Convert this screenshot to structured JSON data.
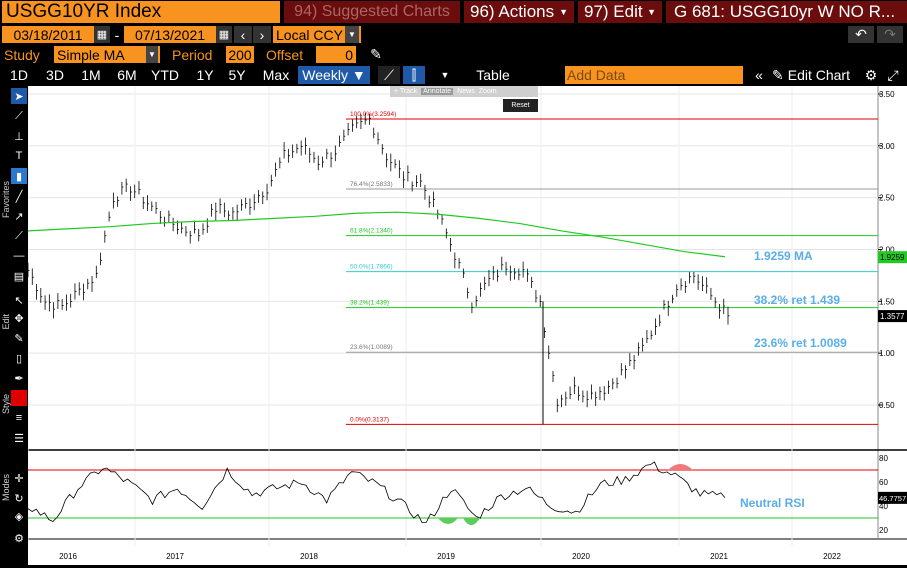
{
  "header": {
    "ticker": "USGG10YR Index",
    "suggested": "94) Suggested Charts",
    "actions": "96) Actions",
    "edit": "97) Edit",
    "gtitle": "G 681: USGG10yr W NO R..."
  },
  "dates": {
    "start": "03/18/2011",
    "sep": "-",
    "end": "07/13/2021",
    "ccy": "Local CCY"
  },
  "study": {
    "label": "Study",
    "name": "Simple MA",
    "period_label": "Period",
    "period": "200",
    "offset_label": "Offset",
    "offset": "0"
  },
  "ranges": [
    "1D",
    "3D",
    "1M",
    "6M",
    "YTD",
    "1Y",
    "5Y",
    "Max"
  ],
  "freq": "Weekly ▼",
  "toolbar": {
    "table": "Table",
    "add_data": "Add Data",
    "edit_chart": "Edit Chart"
  },
  "mini": [
    "+ Track",
    "Annotate",
    "News",
    "Zoom",
    "Reset"
  ],
  "side": {
    "favorites": "Favorites",
    "edit": "Edit",
    "style": "Style",
    "modes": "Modes"
  },
  "chart_data": {
    "type": "line",
    "x_labels": [
      "2016",
      "2017",
      "2018",
      "2019",
      "2020",
      "2021",
      "2022"
    ],
    "y_ticks": [
      "3.50",
      "3.00",
      "2.50",
      "2.00",
      "1.50",
      "1.00",
      "0.50"
    ],
    "rsi_ticks": [
      "80",
      "60",
      "40",
      "20"
    ],
    "fib": [
      {
        "label": "100.0%(3.2594)",
        "value": 3.2594,
        "color": "#e00000"
      },
      {
        "label": "76.4%(2.5833)",
        "value": 2.5833,
        "color": "#999999"
      },
      {
        "label": "61.8%(2.1340)",
        "value": 2.134,
        "color": "#22c922"
      },
      {
        "label": "50.0%(1.7866)",
        "value": 1.7866,
        "color": "#33cccc"
      },
      {
        "label": "38.2%(1.439)",
        "value": 1.439,
        "color": "#22c922"
      },
      {
        "label": "23.6%(1.0089)",
        "value": 1.0089,
        "color": "#999999"
      },
      {
        "label": "0.0%(0.3137)",
        "value": 0.3137,
        "color": "#e00000"
      }
    ],
    "annotations": {
      "ma": "1.9259 MA",
      "r382": "38.2% ret 1.439",
      "r236": "23.6% ret 1.0089",
      "rsi": "Neutral RSI"
    },
    "last": {
      "ma": "1.9259",
      "price": "1.3577",
      "rsi": "46.7757"
    },
    "series": [
      {
        "name": "Price",
        "values": [
          1.8,
          1.5,
          1.45,
          1.6,
          1.75,
          2.5,
          2.6,
          2.45,
          2.3,
          2.2,
          2.15,
          2.4,
          2.35,
          2.45,
          2.6,
          2.9,
          3.0,
          2.85,
          2.95,
          3.15,
          3.26,
          2.9,
          2.7,
          2.65,
          2.35,
          1.95,
          1.5,
          1.7,
          1.85,
          1.8,
          1.5,
          0.55,
          0.65,
          0.6,
          0.68,
          0.85,
          1.05,
          1.35,
          1.65,
          1.75,
          1.55,
          1.36
        ]
      },
      {
        "name": "MA",
        "values": [
          2.18,
          2.2,
          2.22,
          2.25,
          2.27,
          2.28,
          2.3,
          2.32,
          2.35,
          2.36,
          2.34,
          2.3,
          2.25,
          2.18,
          2.12,
          2.05,
          1.98,
          1.93
        ]
      },
      {
        "name": "RSI",
        "values": [
          40,
          28,
          55,
          72,
          60,
          45,
          55,
          40,
          70,
          50,
          55,
          60,
          45,
          68,
          58,
          42,
          25,
          55,
          30,
          48,
          55,
          40,
          35,
          58,
          62,
          75,
          65,
          50,
          47
        ]
      }
    ]
  }
}
